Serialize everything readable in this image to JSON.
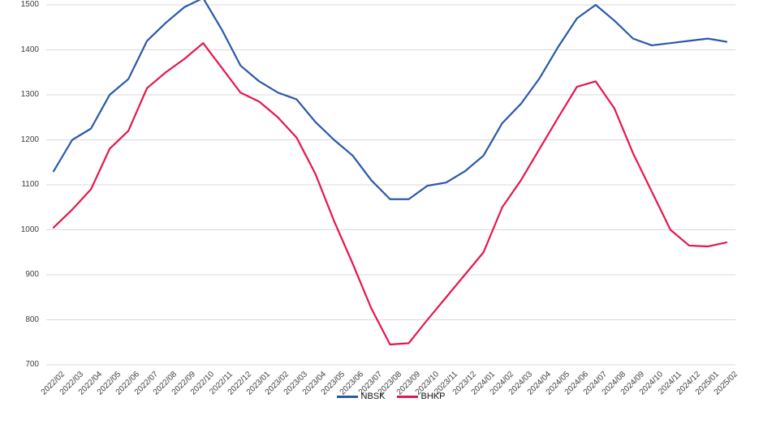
{
  "chart_data": {
    "type": "line",
    "title": "",
    "xlabel": "",
    "ylabel": "",
    "grid": true,
    "legend_position": "bottom-center",
    "ylim": [
      700,
      1512
    ],
    "yticks": [
      700,
      800,
      900,
      1000,
      1100,
      1200,
      1300,
      1400,
      1500
    ],
    "x": [
      "2022/02",
      "2022/03",
      "2022/04",
      "2022/05",
      "2022/06",
      "2022/07",
      "2022/08",
      "2022/09",
      "2022/10",
      "2022/11",
      "2022/12",
      "2023/01",
      "2023/02",
      "2023/03",
      "2023/04",
      "2023/05",
      "2023/06",
      "2023/07",
      "2023/08",
      "2023/09",
      "2023/10",
      "2023/11",
      "2023/12",
      "2024/01",
      "2024/02",
      "2024/03",
      "2024/04",
      "2024/05",
      "2024/06",
      "2024/07",
      "2024/08",
      "2024/09",
      "2024/10",
      "2024/11",
      "2024/12",
      "2025/01",
      "2025/02"
    ],
    "series": [
      {
        "name": "NBSK",
        "color": "#2a58a9",
        "values": [
          1130,
          1200,
          1225,
          1300,
          1335,
          1420,
          1460,
          1495,
          1515,
          1445,
          1365,
          1330,
          1305,
          1290,
          1240,
          1200,
          1165,
          1110,
          1068,
          1068,
          1098,
          1105,
          1130,
          1165,
          1237,
          1280,
          1337,
          1407,
          1470,
          1500,
          1465,
          1425,
          1410,
          1415,
          1420,
          1425,
          1418
        ]
      },
      {
        "name": "BHKP",
        "color": "#e5164c",
        "values": [
          1005,
          1045,
          1090,
          1180,
          1220,
          1315,
          1350,
          1380,
          1415,
          1360,
          1305,
          1285,
          1250,
          1205,
          1125,
          1020,
          925,
          825,
          745,
          748,
          800,
          850,
          900,
          950,
          1050,
          1110,
          1180,
          1250,
          1318,
          1330,
          1270,
          1170,
          1085,
          1000,
          965,
          963,
          972
        ]
      }
    ],
    "gridline_color": "#d9d9d9",
    "tick_label_color": "#3c3c3c"
  }
}
